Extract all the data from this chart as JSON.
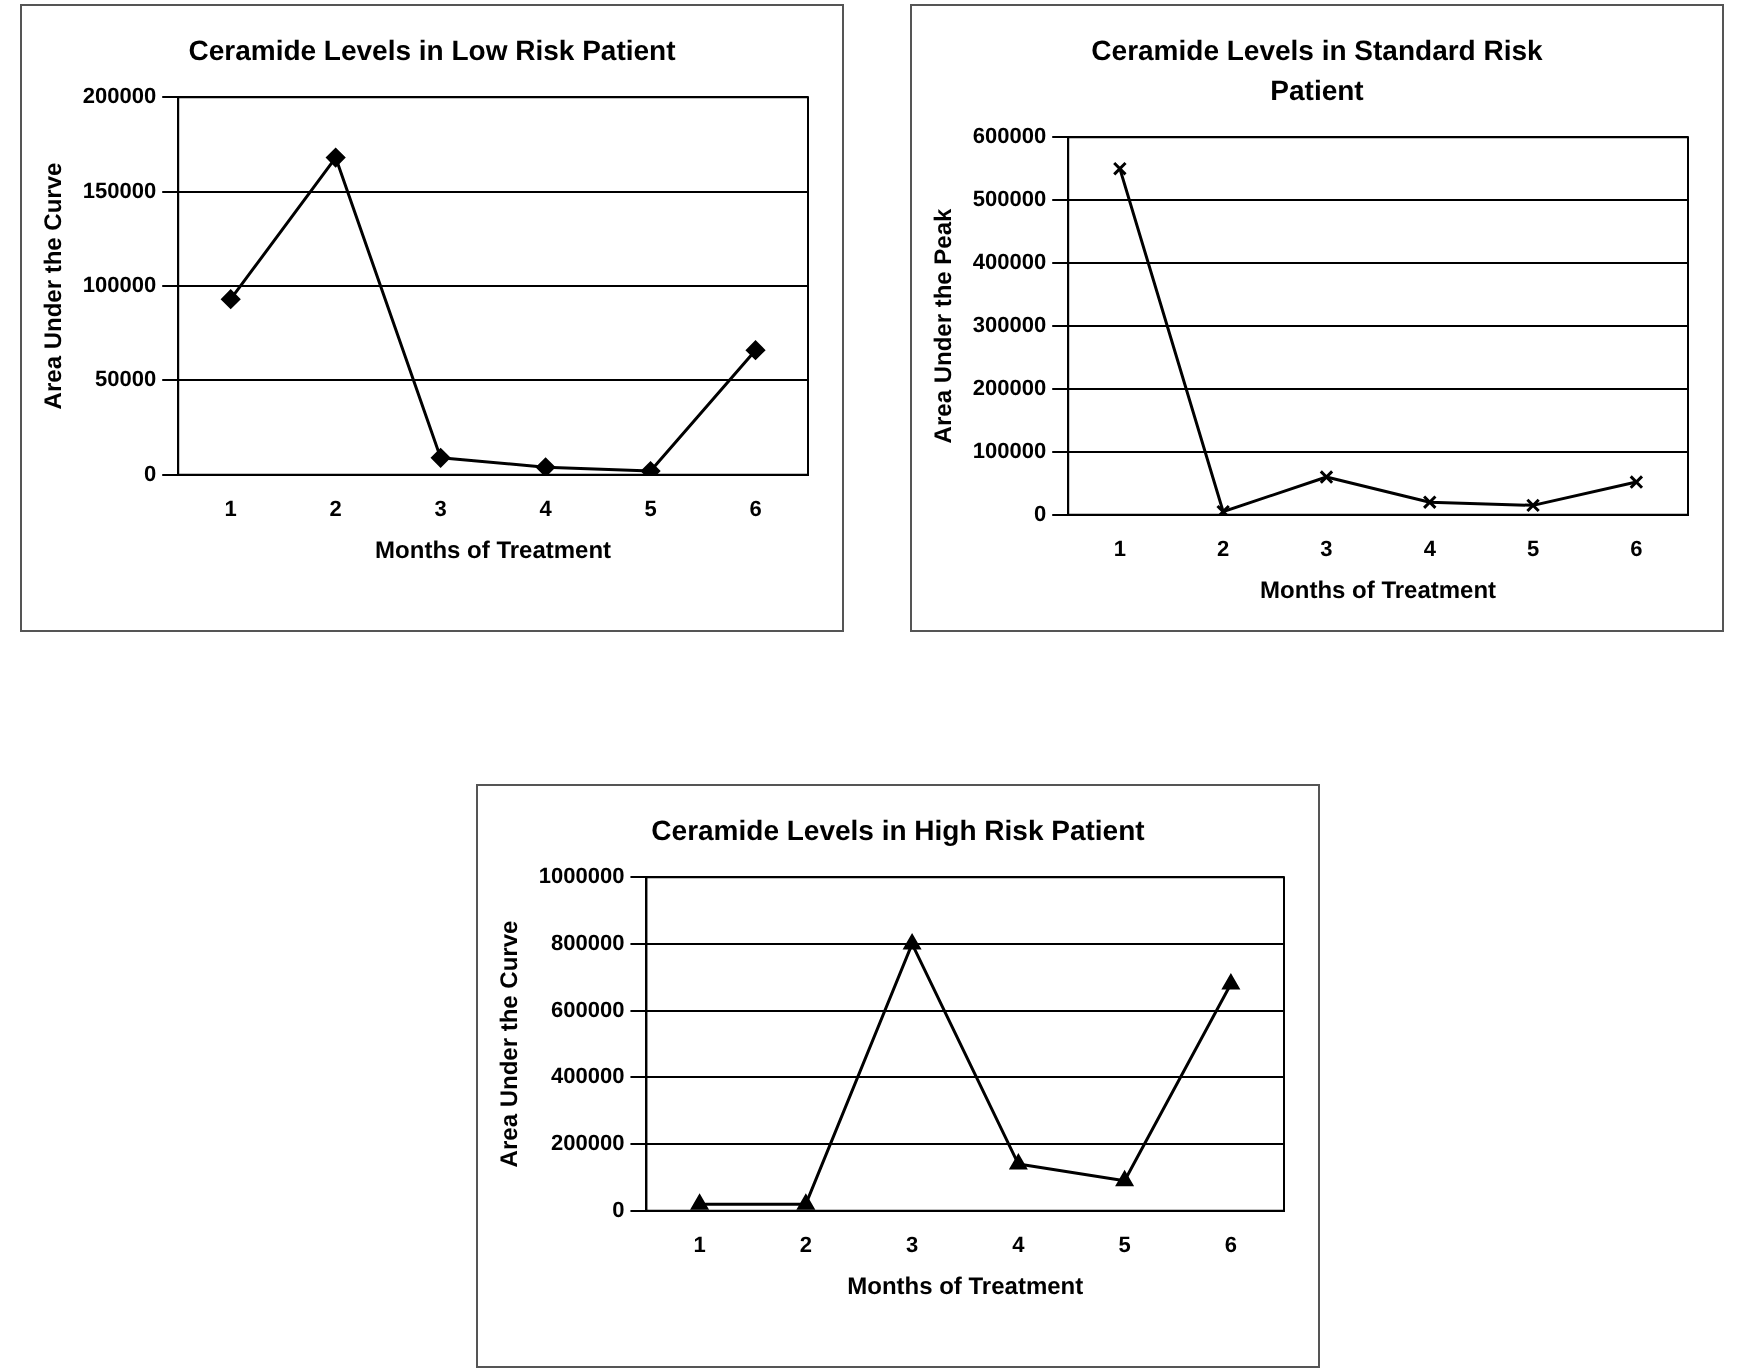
{
  "chart_data": [
    {
      "type": "line",
      "title": "Ceramide Levels in Low Risk Patient",
      "xlabel": "Months of Treatment",
      "ylabel": "Area Under the Curve",
      "categories": [
        "1",
        "2",
        "3",
        "4",
        "5",
        "6"
      ],
      "series": [
        {
          "color": "#000000",
          "values": [
            93000,
            168000,
            9000,
            4000,
            2000,
            66000
          ]
        }
      ],
      "ylim": [
        0,
        200000
      ],
      "yticks": [
        0,
        50000,
        100000,
        150000,
        200000
      ],
      "grid": "y",
      "marker": "diamond",
      "line_style": "solid"
    },
    {
      "type": "line",
      "title": "Ceramide Levels in Standard Risk Patient",
      "xlabel": "Months of Treatment",
      "ylabel": "Area Under the Peak",
      "categories": [
        "1",
        "2",
        "3",
        "4",
        "5",
        "6"
      ],
      "series": [
        {
          "color": "#000000",
          "values": [
            550000,
            5000,
            60000,
            20000,
            15000,
            52000
          ]
        }
      ],
      "ylim": [
        0,
        600000
      ],
      "yticks": [
        0,
        100000,
        200000,
        300000,
        400000,
        500000,
        600000
      ],
      "grid": "y",
      "marker": "cross",
      "line_style": "solid"
    },
    {
      "type": "line",
      "title": "Ceramide Levels in High Risk Patient",
      "xlabel": "Months of Treatment",
      "ylabel": "Area Under the Curve",
      "categories": [
        "1",
        "2",
        "3",
        "4",
        "5",
        "6"
      ],
      "series": [
        {
          "color": "#000000",
          "values": [
            20000,
            20000,
            800000,
            140000,
            90000,
            680000
          ]
        }
      ],
      "ylim": [
        0,
        1000000
      ],
      "yticks": [
        0,
        200000,
        400000,
        600000,
        800000,
        1000000
      ],
      "grid": "y",
      "marker": "triangle",
      "line_style": "solid"
    }
  ]
}
